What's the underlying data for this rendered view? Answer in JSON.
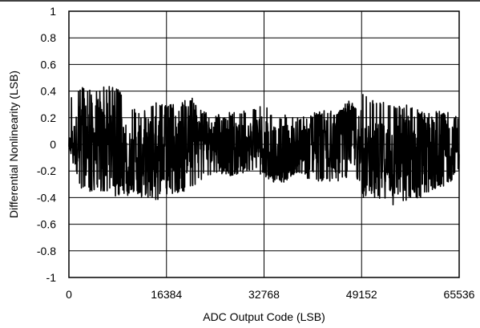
{
  "chart_data": {
    "type": "line",
    "title": "",
    "xlabel": "ADC Output Code (LSB)",
    "ylabel": "Differential Nonlinearity (LSB)",
    "xlim": [
      0,
      65536
    ],
    "ylim": [
      -1,
      1
    ],
    "x_ticks": [
      0,
      16384,
      32768,
      49152,
      65536
    ],
    "x_tick_labels": [
      "0",
      "16384",
      "32768",
      "49152",
      "65536"
    ],
    "y_ticks": [
      1,
      0.8,
      0.6,
      0.4,
      0.2,
      0,
      -0.2,
      -0.4,
      -0.6,
      -0.8,
      -1
    ],
    "y_tick_labels": [
      "1",
      "0.8",
      "0.6",
      "0.4",
      "0.2",
      "0",
      "-0.2",
      "-0.4",
      "-0.6",
      "-0.8",
      "-1"
    ],
    "grid": true,
    "line_color": "#000000",
    "series": [
      {
        "x": [
          0,
          2048,
          4096,
          6144,
          8192,
          10240,
          12288,
          14336,
          16384,
          18432,
          20480,
          22528,
          24576,
          26624,
          28672,
          30720,
          32768,
          34816,
          36864,
          38912,
          40960,
          43008,
          45056,
          47104,
          49151,
          49153,
          51200,
          53248,
          55296,
          57344,
          59392,
          61440,
          63488,
          65535
        ],
        "y_upper": [
          0.35,
          0.44,
          0.4,
          0.45,
          0.42,
          0.28,
          0.25,
          0.32,
          0.3,
          0.3,
          0.36,
          0.25,
          0.22,
          0.24,
          0.25,
          0.27,
          0.29,
          0.22,
          0.22,
          0.2,
          0.24,
          0.26,
          0.25,
          0.33,
          0.27,
          0.38,
          0.33,
          0.33,
          0.3,
          0.3,
          0.25,
          0.25,
          0.25,
          0.45
        ],
        "y_lower": [
          -0.05,
          -0.35,
          -0.36,
          -0.35,
          -0.4,
          -0.38,
          -0.4,
          -0.42,
          -0.4,
          -0.36,
          -0.35,
          -0.25,
          -0.22,
          -0.24,
          -0.22,
          -0.22,
          -0.24,
          -0.3,
          -0.28,
          -0.22,
          -0.3,
          -0.28,
          -0.28,
          -0.25,
          -0.3,
          -0.4,
          -0.4,
          -0.44,
          -0.47,
          -0.43,
          -0.42,
          -0.35,
          -0.32,
          -0.2
        ],
        "average": [
          0.0,
          0.02,
          0.0,
          0.03,
          -0.05,
          -0.12,
          -0.08,
          -0.08,
          -0.05,
          0.0,
          0.05,
          0.05,
          0.02,
          0.0,
          -0.03,
          0.0,
          0.02,
          -0.08,
          -0.04,
          -0.05,
          0.0,
          0.02,
          0.0,
          0.05,
          0.05,
          -0.12,
          -0.1,
          -0.12,
          -0.1,
          -0.08,
          -0.08,
          -0.05,
          -0.03,
          0.02
        ]
      }
    ]
  }
}
